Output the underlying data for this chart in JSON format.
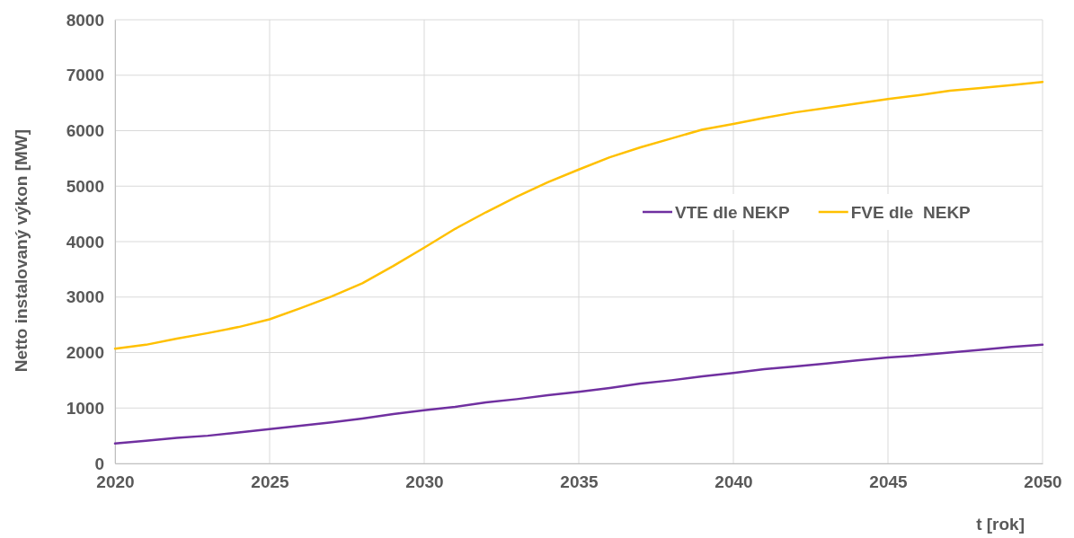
{
  "chart_data": {
    "type": "line",
    "xlabel": "t [rok]",
    "ylabel": "Netto instalovaný výkon [MW]",
    "x": [
      2020,
      2021,
      2022,
      2023,
      2024,
      2025,
      2026,
      2027,
      2028,
      2029,
      2030,
      2031,
      2032,
      2033,
      2034,
      2035,
      2036,
      2037,
      2038,
      2039,
      2040,
      2041,
      2042,
      2043,
      2044,
      2045,
      2046,
      2047,
      2048,
      2049,
      2050
    ],
    "series": [
      {
        "name": "VTE dle NEKP",
        "color": "#7030a0",
        "values": [
          360,
          410,
          460,
          500,
          560,
          620,
          680,
          740,
          810,
          890,
          960,
          1020,
          1100,
          1160,
          1230,
          1290,
          1360,
          1440,
          1500,
          1570,
          1630,
          1700,
          1750,
          1800,
          1860,
          1910,
          1950,
          2000,
          2050,
          2100,
          2140
        ]
      },
      {
        "name": "FVE dle  NEKP",
        "color": "#ffc000",
        "values": [
          2070,
          2140,
          2250,
          2350,
          2460,
          2600,
          2800,
          3010,
          3250,
          3560,
          3890,
          4230,
          4530,
          4810,
          5070,
          5300,
          5520,
          5700,
          5860,
          6020,
          6120,
          6230,
          6330,
          6410,
          6490,
          6570,
          6640,
          6720,
          6770,
          6820,
          6880
        ]
      }
    ],
    "xlim": [
      2020,
      2050
    ],
    "xticks": [
      2020,
      2025,
      2030,
      2035,
      2040,
      2045,
      2050
    ],
    "ylim": [
      0,
      8000
    ],
    "yticks": [
      0,
      1000,
      2000,
      3000,
      4000,
      5000,
      6000,
      7000,
      8000
    ],
    "grid": true,
    "legend": "right",
    "marker": "none",
    "line_style": "solid"
  }
}
